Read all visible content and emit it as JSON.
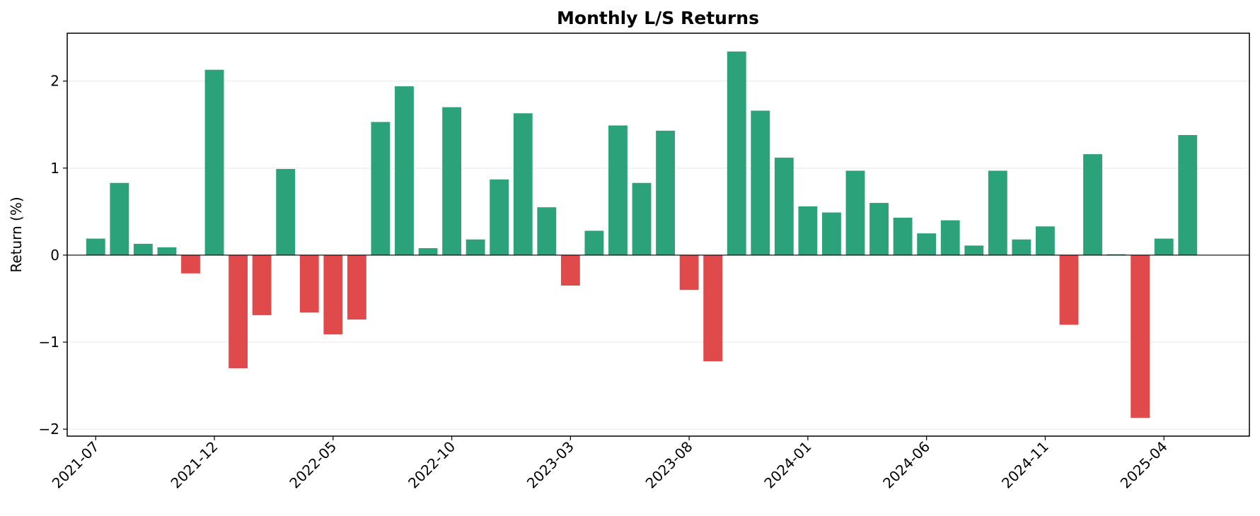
{
  "chart_data": {
    "type": "bar",
    "title": "Monthly L/S Returns",
    "xlabel": "",
    "ylabel": "Return (%)",
    "ylim": [
      -2.08,
      2.55
    ],
    "yticks": [
      -2,
      -1,
      0,
      1,
      2
    ],
    "ytick_labels": [
      "−2",
      "−1",
      "0",
      "1",
      "2"
    ],
    "grid": "horizontal",
    "positive_color": "#2ca27a",
    "negative_color": "#e04a4a",
    "xtick_labels": [
      "2021-07",
      "2021-12",
      "2022-05",
      "2022-10",
      "2023-03",
      "2023-08",
      "2024-01",
      "2024-06",
      "2024-11",
      "2025-04"
    ],
    "xtick_every": 5,
    "categories": [
      "2021-07",
      "2021-08",
      "2021-09",
      "2021-10",
      "2021-11",
      "2021-12",
      "2022-01",
      "2022-02",
      "2022-03",
      "2022-04",
      "2022-05",
      "2022-06",
      "2022-07",
      "2022-08",
      "2022-09",
      "2022-10",
      "2022-11",
      "2022-12",
      "2023-01",
      "2023-02",
      "2023-03",
      "2023-04",
      "2023-05",
      "2023-06",
      "2023-07",
      "2023-08",
      "2023-09",
      "2023-10",
      "2023-11",
      "2023-12",
      "2024-01",
      "2024-02",
      "2024-03",
      "2024-04",
      "2024-05",
      "2024-06",
      "2024-07",
      "2024-08",
      "2024-09",
      "2024-10",
      "2024-11",
      "2024-12",
      "2025-01",
      "2025-02",
      "2025-03",
      "2025-04",
      "2025-05"
    ],
    "values": [
      0.19,
      0.83,
      0.13,
      0.09,
      -0.21,
      2.13,
      -1.3,
      -0.69,
      0.99,
      -0.66,
      -0.91,
      -0.74,
      1.53,
      1.94,
      0.08,
      1.7,
      0.18,
      0.87,
      1.63,
      0.55,
      -0.35,
      0.28,
      1.49,
      0.83,
      1.43,
      -0.4,
      -1.22,
      2.34,
      1.66,
      1.12,
      0.56,
      0.49,
      0.97,
      0.6,
      0.43,
      0.25,
      0.4,
      0.11,
      0.97,
      0.18,
      0.33,
      -0.8,
      1.16,
      0.01,
      -1.87,
      0.19,
      1.38
    ]
  }
}
